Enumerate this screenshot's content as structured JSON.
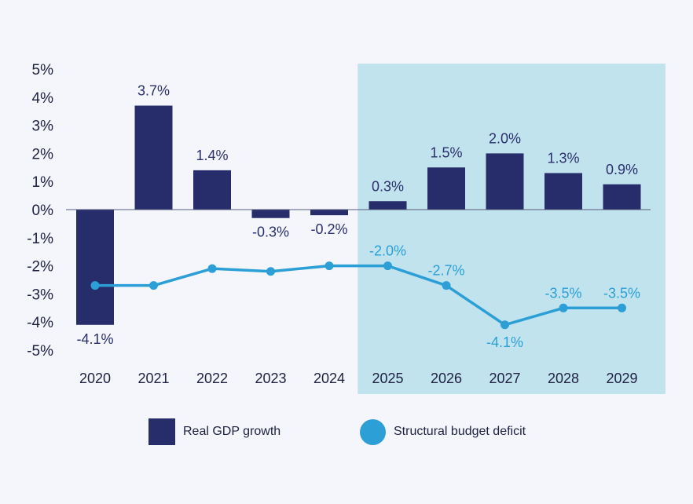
{
  "chart_data": {
    "type": "bar+line",
    "categories": [
      "2020",
      "2021",
      "2022",
      "2023",
      "2024",
      "2025",
      "2026",
      "2027",
      "2028",
      "2029"
    ],
    "ylim": [
      -5,
      5
    ],
    "yticks": [
      5,
      4,
      3,
      2,
      1,
      0,
      -1,
      -2,
      -3,
      -4,
      -5
    ],
    "ytick_labels": [
      "5%",
      "4%",
      "3%",
      "2%",
      "1%",
      "0%",
      "-1%",
      "-2%",
      "-3%",
      "-4%",
      "-5%"
    ],
    "highlight_region": {
      "from": "2025",
      "to": "2029"
    },
    "series": [
      {
        "name": "Real GDP growth",
        "kind": "bar",
        "color": "#262d6a",
        "values": [
          -4.1,
          3.7,
          1.4,
          -0.3,
          -0.2,
          0.3,
          1.5,
          2.0,
          1.3,
          0.9
        ],
        "labels": [
          "-4.1%",
          "3.7%",
          "1.4%",
          "-0.3%",
          "-0.2%",
          "0.3%",
          "1.5%",
          "2.0%",
          "1.3%",
          "0.9%"
        ]
      },
      {
        "name": "Structural budget deficit",
        "kind": "line",
        "color": "#2b9fd6",
        "values": [
          -2.7,
          -2.7,
          -2.1,
          -2.2,
          -2.0,
          -2.0,
          -2.7,
          -4.1,
          -3.5,
          -3.5
        ],
        "labels": [
          "",
          "",
          "",
          "",
          "",
          "-2.0%",
          "-2.7%",
          "-4.1%",
          "-3.5%",
          "-3.5%"
        ]
      }
    ],
    "colors": {
      "highlight": "#c1e3ee",
      "axis": "#555c7a",
      "background": "#f4f6fc"
    }
  },
  "legend": {
    "items": [
      {
        "label": "Real GDP growth",
        "color": "#262d6a"
      },
      {
        "label": "Structural budget deficit",
        "color": "#2b9fd6"
      }
    ]
  }
}
